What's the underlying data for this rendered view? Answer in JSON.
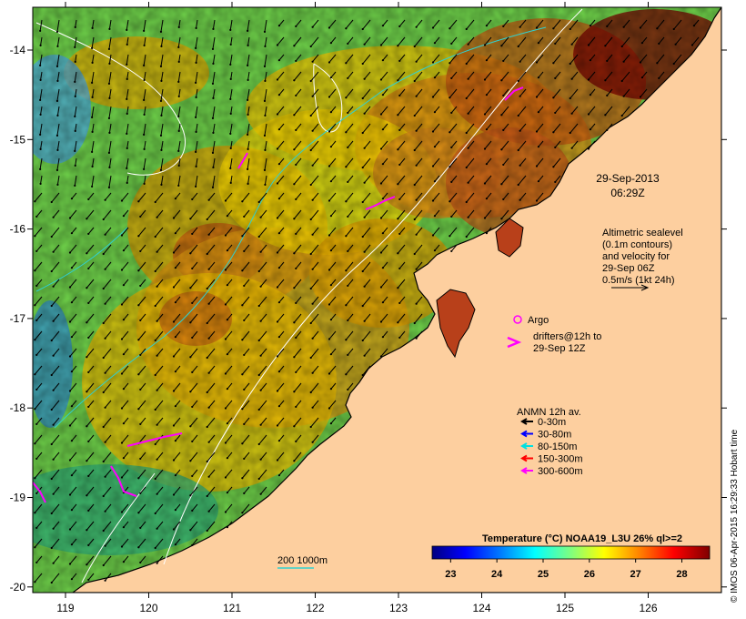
{
  "map": {
    "date_label": "29-Sep-2013",
    "time_label": "06:29Z",
    "lon_ticks": [
      "119",
      "120",
      "121",
      "122",
      "123",
      "124",
      "125",
      "126"
    ],
    "lat_ticks": [
      "-14",
      "-15",
      "-16",
      "-17",
      "-18",
      "-19",
      "-20"
    ],
    "credit": "© IMOS 06-Apr-2015 16:29:33 Hobart time",
    "scale_label": "200  1000m"
  },
  "altimetry_note": {
    "lines": [
      "Altimetric sealevel",
      "(0.1m contours)",
      "and velocity for",
      "29-Sep 06Z",
      "0.5m/s (1kt 24h)"
    ]
  },
  "argo": {
    "label": "Argo"
  },
  "drifters": {
    "lines": [
      "drifters@12h to",
      "29-Sep 12Z"
    ]
  },
  "anmn_legend": {
    "title": "ANMN 12h av.",
    "items": [
      {
        "label": "0-30m",
        "color": "#000000"
      },
      {
        "label": "30-80m",
        "color": "#0000ff"
      },
      {
        "label": "80-150m",
        "color": "#00e0e0"
      },
      {
        "label": "150-300m",
        "color": "#ff0000"
      },
      {
        "label": "300-600m",
        "color": "#ff00ff"
      }
    ]
  },
  "colorbar": {
    "title": "Temperature (°C) NOAA19_L3U 26% ql>=2",
    "ticks": [
      "23",
      "24",
      "25",
      "26",
      "27",
      "28"
    ],
    "range": [
      22.6,
      28.6
    ],
    "colors": [
      "#00007f",
      "#0000ff",
      "#007fff",
      "#00ffff",
      "#7fff7f",
      "#ffff00",
      "#ff7f00",
      "#ff0000",
      "#7f0000"
    ]
  },
  "colors": {
    "land": "#fdcf9f",
    "coast": "#000000",
    "arrow": "#000000",
    "contour": "#ffffff",
    "isobath": "#30d0d0",
    "marker": "#ff00ff"
  }
}
